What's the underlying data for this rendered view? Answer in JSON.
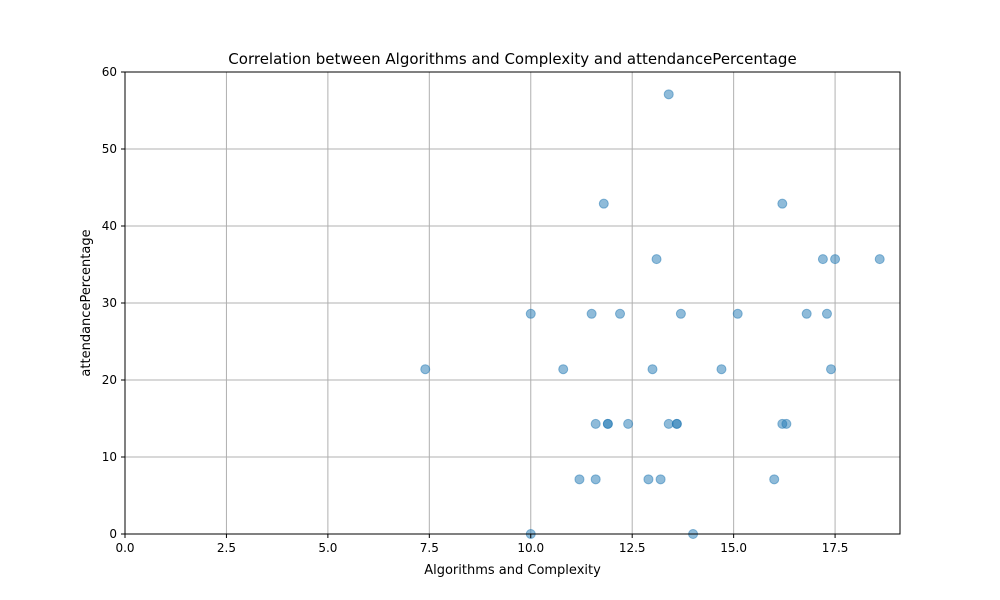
{
  "chart_data": {
    "type": "scatter",
    "title": "Correlation between Algorithms and Complexity and attendancePercentage",
    "xlabel": "Algorithms and Complexity",
    "ylabel": "attendancePercentage",
    "xlim": [
      0,
      19.1
    ],
    "ylim": [
      0,
      60
    ],
    "xticks": [
      0.0,
      2.5,
      5.0,
      7.5,
      10.0,
      12.5,
      15.0,
      17.5
    ],
    "xtick_labels": [
      "0.0",
      "2.5",
      "5.0",
      "7.5",
      "10.0",
      "12.5",
      "15.0",
      "17.5"
    ],
    "yticks": [
      0,
      10,
      20,
      30,
      40,
      50,
      60
    ],
    "ytick_labels": [
      "0",
      "10",
      "20",
      "30",
      "40",
      "50",
      "60"
    ],
    "grid": true,
    "marker_color": "#1f77b4",
    "marker_alpha": 0.5,
    "points": [
      {
        "x": 7.4,
        "y": 21.4
      },
      {
        "x": 10.0,
        "y": 28.6
      },
      {
        "x": 10.0,
        "y": 0.0
      },
      {
        "x": 10.8,
        "y": 21.4
      },
      {
        "x": 11.2,
        "y": 7.1
      },
      {
        "x": 11.5,
        "y": 28.6
      },
      {
        "x": 11.6,
        "y": 14.3
      },
      {
        "x": 11.6,
        "y": 7.1
      },
      {
        "x": 11.8,
        "y": 42.9
      },
      {
        "x": 11.9,
        "y": 14.3
      },
      {
        "x": 11.9,
        "y": 14.3
      },
      {
        "x": 12.2,
        "y": 28.6
      },
      {
        "x": 12.4,
        "y": 14.3
      },
      {
        "x": 12.9,
        "y": 7.1
      },
      {
        "x": 13.0,
        "y": 21.4
      },
      {
        "x": 13.1,
        "y": 35.7
      },
      {
        "x": 13.2,
        "y": 7.1
      },
      {
        "x": 13.4,
        "y": 57.1
      },
      {
        "x": 13.4,
        "y": 14.3
      },
      {
        "x": 13.6,
        "y": 14.3
      },
      {
        "x": 13.6,
        "y": 14.3
      },
      {
        "x": 13.7,
        "y": 28.6
      },
      {
        "x": 14.0,
        "y": 0.0
      },
      {
        "x": 14.7,
        "y": 21.4
      },
      {
        "x": 15.1,
        "y": 28.6
      },
      {
        "x": 16.0,
        "y": 7.1
      },
      {
        "x": 16.2,
        "y": 42.9
      },
      {
        "x": 16.2,
        "y": 14.3
      },
      {
        "x": 16.3,
        "y": 14.3
      },
      {
        "x": 16.8,
        "y": 28.6
      },
      {
        "x": 17.2,
        "y": 35.7
      },
      {
        "x": 17.3,
        "y": 28.6
      },
      {
        "x": 17.4,
        "y": 21.4
      },
      {
        "x": 17.5,
        "y": 35.7
      },
      {
        "x": 18.6,
        "y": 35.7
      }
    ]
  }
}
